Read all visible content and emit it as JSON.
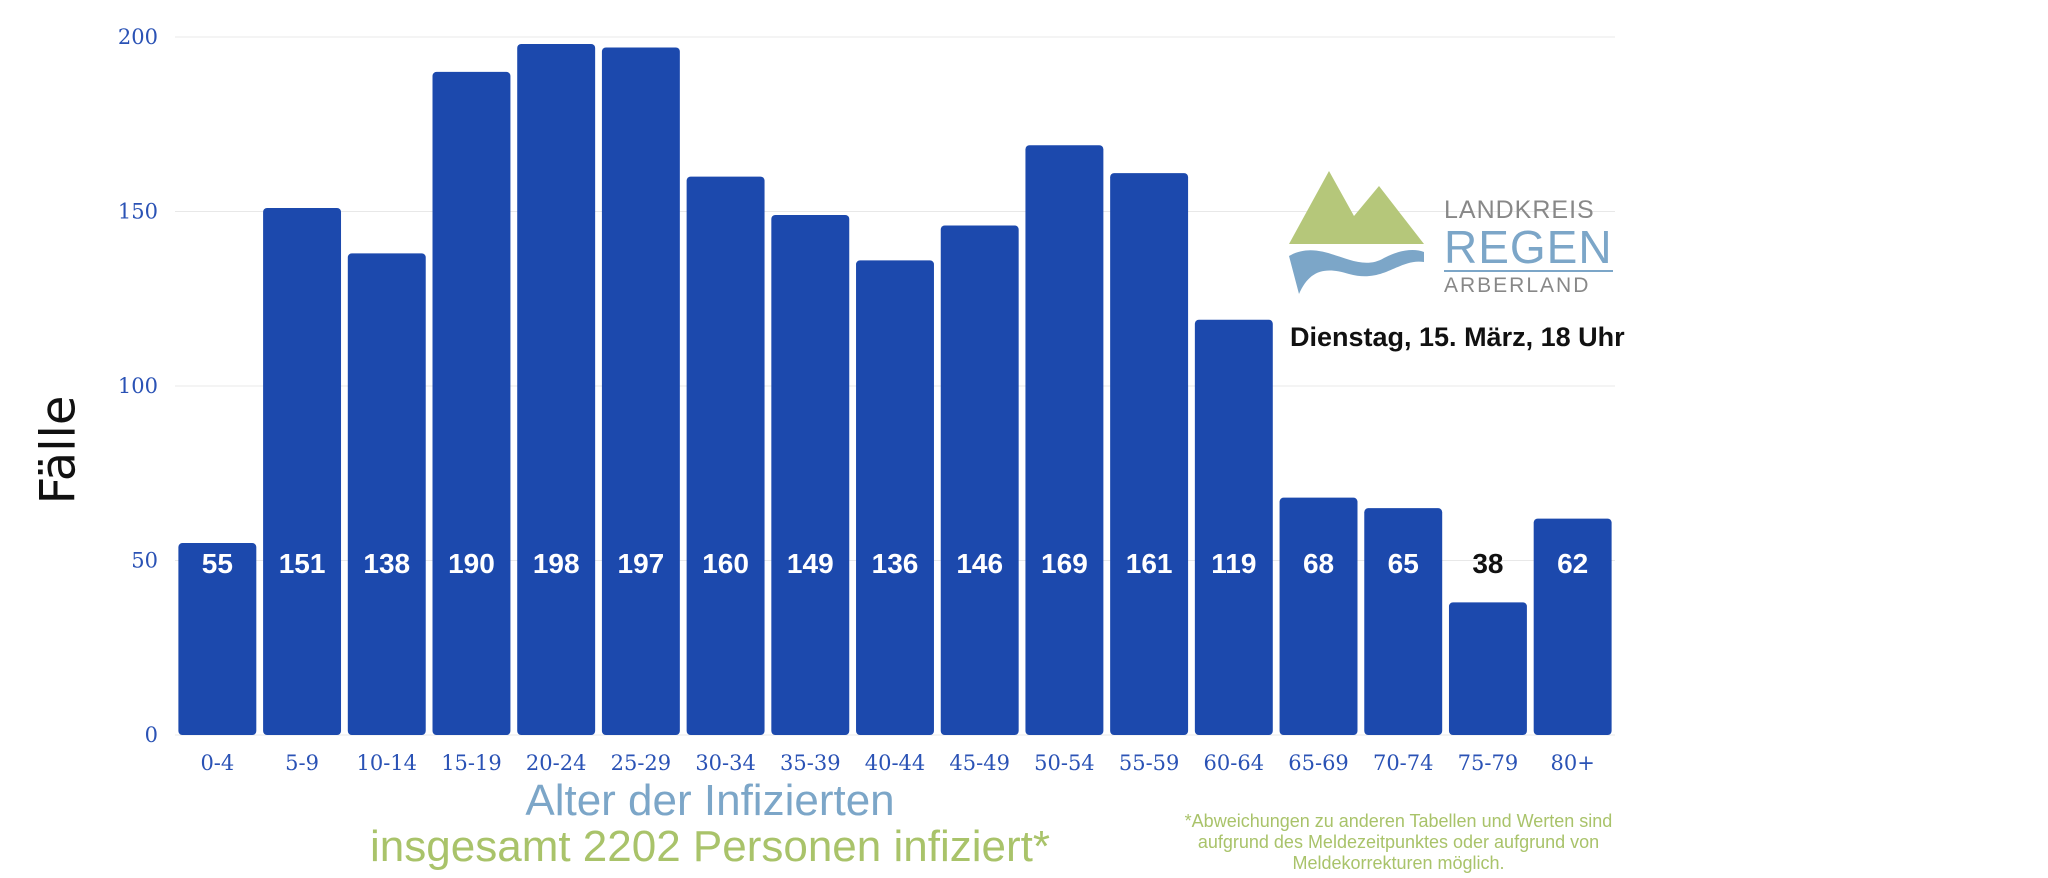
{
  "chart_data": {
    "type": "bar",
    "categories": [
      "0-4",
      "5-9",
      "10-14",
      "15-19",
      "20-24",
      "25-29",
      "30-34",
      "35-39",
      "40-44",
      "45-49",
      "50-54",
      "55-59",
      "60-64",
      "65-69",
      "70-74",
      "75-79",
      "80+"
    ],
    "values": [
      55,
      151,
      138,
      190,
      198,
      197,
      160,
      149,
      136,
      146,
      169,
      161,
      119,
      68,
      65,
      38,
      62
    ],
    "ylabel": "Fälle",
    "yticks": [
      0,
      50,
      100,
      150,
      200
    ],
    "ylim": [
      0,
      200
    ],
    "grid": true,
    "bar_color": "#1c49ad",
    "x_title": "Alter der Infizierten",
    "subtitle": "insgesamt 2202 Personen infiziert*"
  },
  "date_label": "Dienstag, 15. März, 18 Uhr",
  "footnote": "*Abweichungen zu anderen Tabellen und Werten sind aufgrund des Meldezeitpunktes oder aufgrund von Meldekorrekturen möglich.",
  "logo": {
    "line1": "LANDKREIS",
    "line2": "REGEN",
    "line3": "ARBERLAND"
  },
  "colors": {
    "title_blue": "#7ca6c8",
    "title_green": "#a9c36a",
    "tick_blue": "#2a52b5"
  }
}
